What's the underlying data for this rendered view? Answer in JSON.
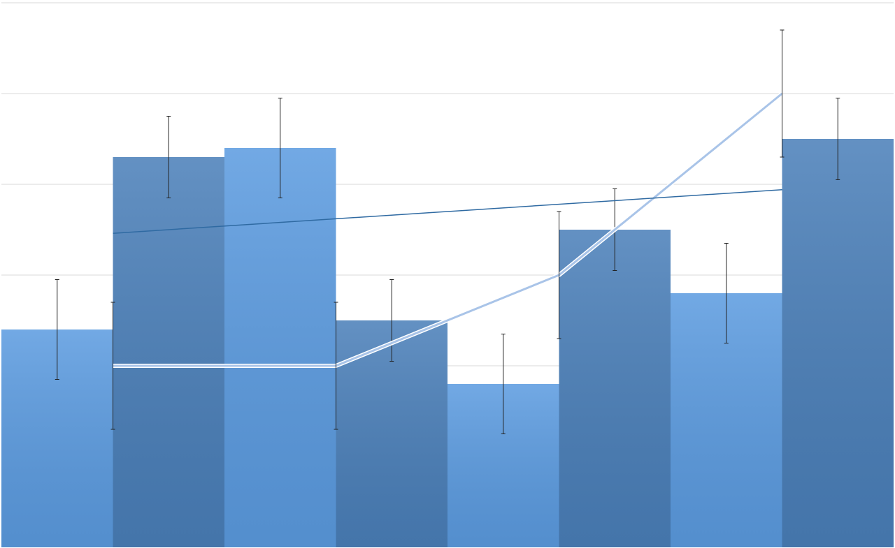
{
  "chart_data": {
    "type": "bar",
    "categories": [
      null,
      null,
      null,
      null,
      null,
      null,
      null,
      null
    ],
    "values": [
      2.4,
      4.3,
      4.4,
      2.5,
      1.8,
      3.5,
      2.8,
      4.5
    ],
    "errors": [
      0.55,
      0.45,
      0.55,
      0.45,
      0.55,
      0.45,
      0.55,
      0.45
    ],
    "colors": [
      "#5b9be0",
      "#4a7fb9",
      "#5b9be0",
      "#4a7fb9",
      "#5b9be0",
      "#4a7fb9",
      "#5b9be0",
      "#4a7fb9"
    ],
    "xlim": [
      0,
      8
    ],
    "ylim": [
      0,
      6
    ],
    "yticks": [
      1,
      2,
      3,
      4,
      5,
      6
    ],
    "grid": true,
    "lines": [
      {
        "type": "line",
        "x": [
          1,
          3,
          5,
          7
        ],
        "values": [
          2,
          2,
          3,
          5
        ],
        "errors": [
          0.7,
          0.7,
          0.7,
          0.7
        ],
        "color": "#a9c4e8"
      },
      {
        "type": "line",
        "x": [
          1,
          7
        ],
        "values": [
          3.46,
          3.94
        ],
        "color": "#2f6aa2"
      }
    ]
  }
}
